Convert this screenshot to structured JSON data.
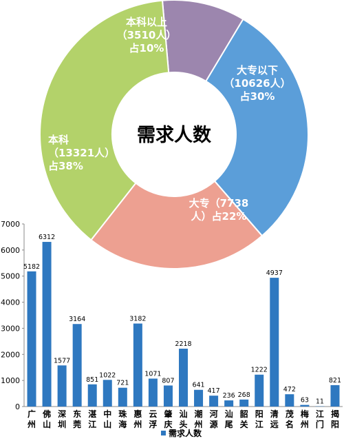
{
  "chart_data": [
    {
      "type": "pie",
      "center_title": "需求人数",
      "slices": [
        {
          "lines": [
            "本科以上",
            "（3510人）",
            "占10%"
          ],
          "value": 10,
          "color": "#9c86ae"
        },
        {
          "lines": [
            "大专以下",
            "（10626人）",
            "占30%"
          ],
          "value": 30,
          "color": "#5b9ed9"
        },
        {
          "lines": [
            "大专（7738",
            "人）占22%"
          ],
          "value": 22,
          "color": "#eda091"
        },
        {
          "lines": [
            "本科",
            "（13321人）",
            "占38%"
          ],
          "value": 38,
          "color": "#b3d26a"
        }
      ]
    },
    {
      "type": "bar",
      "categories": [
        "广州",
        "佛山",
        "深圳",
        "东莞",
        "湛江",
        "中山",
        "珠海",
        "惠州",
        "云浮",
        "肇庆",
        "汕头",
        "潮州",
        "河源",
        "汕尾",
        "韶关",
        "阳江",
        "清远",
        "茂名",
        "梅州",
        "江门",
        "揭阳"
      ],
      "series": [
        {
          "name": "需求人数",
          "color": "#2e78c0",
          "values": [
            5182,
            6312,
            1577,
            3164,
            851,
            1022,
            721,
            3182,
            1071,
            807,
            2218,
            641,
            417,
            236,
            268,
            1222,
            4937,
            472,
            63,
            11,
            821
          ]
        }
      ],
      "ylim": [
        0,
        7000
      ],
      "yticks": [
        "0",
        "1000",
        "2000",
        "3000",
        "4000",
        "5000",
        "6000",
        "7000"
      ],
      "legend": "bottom"
    }
  ]
}
